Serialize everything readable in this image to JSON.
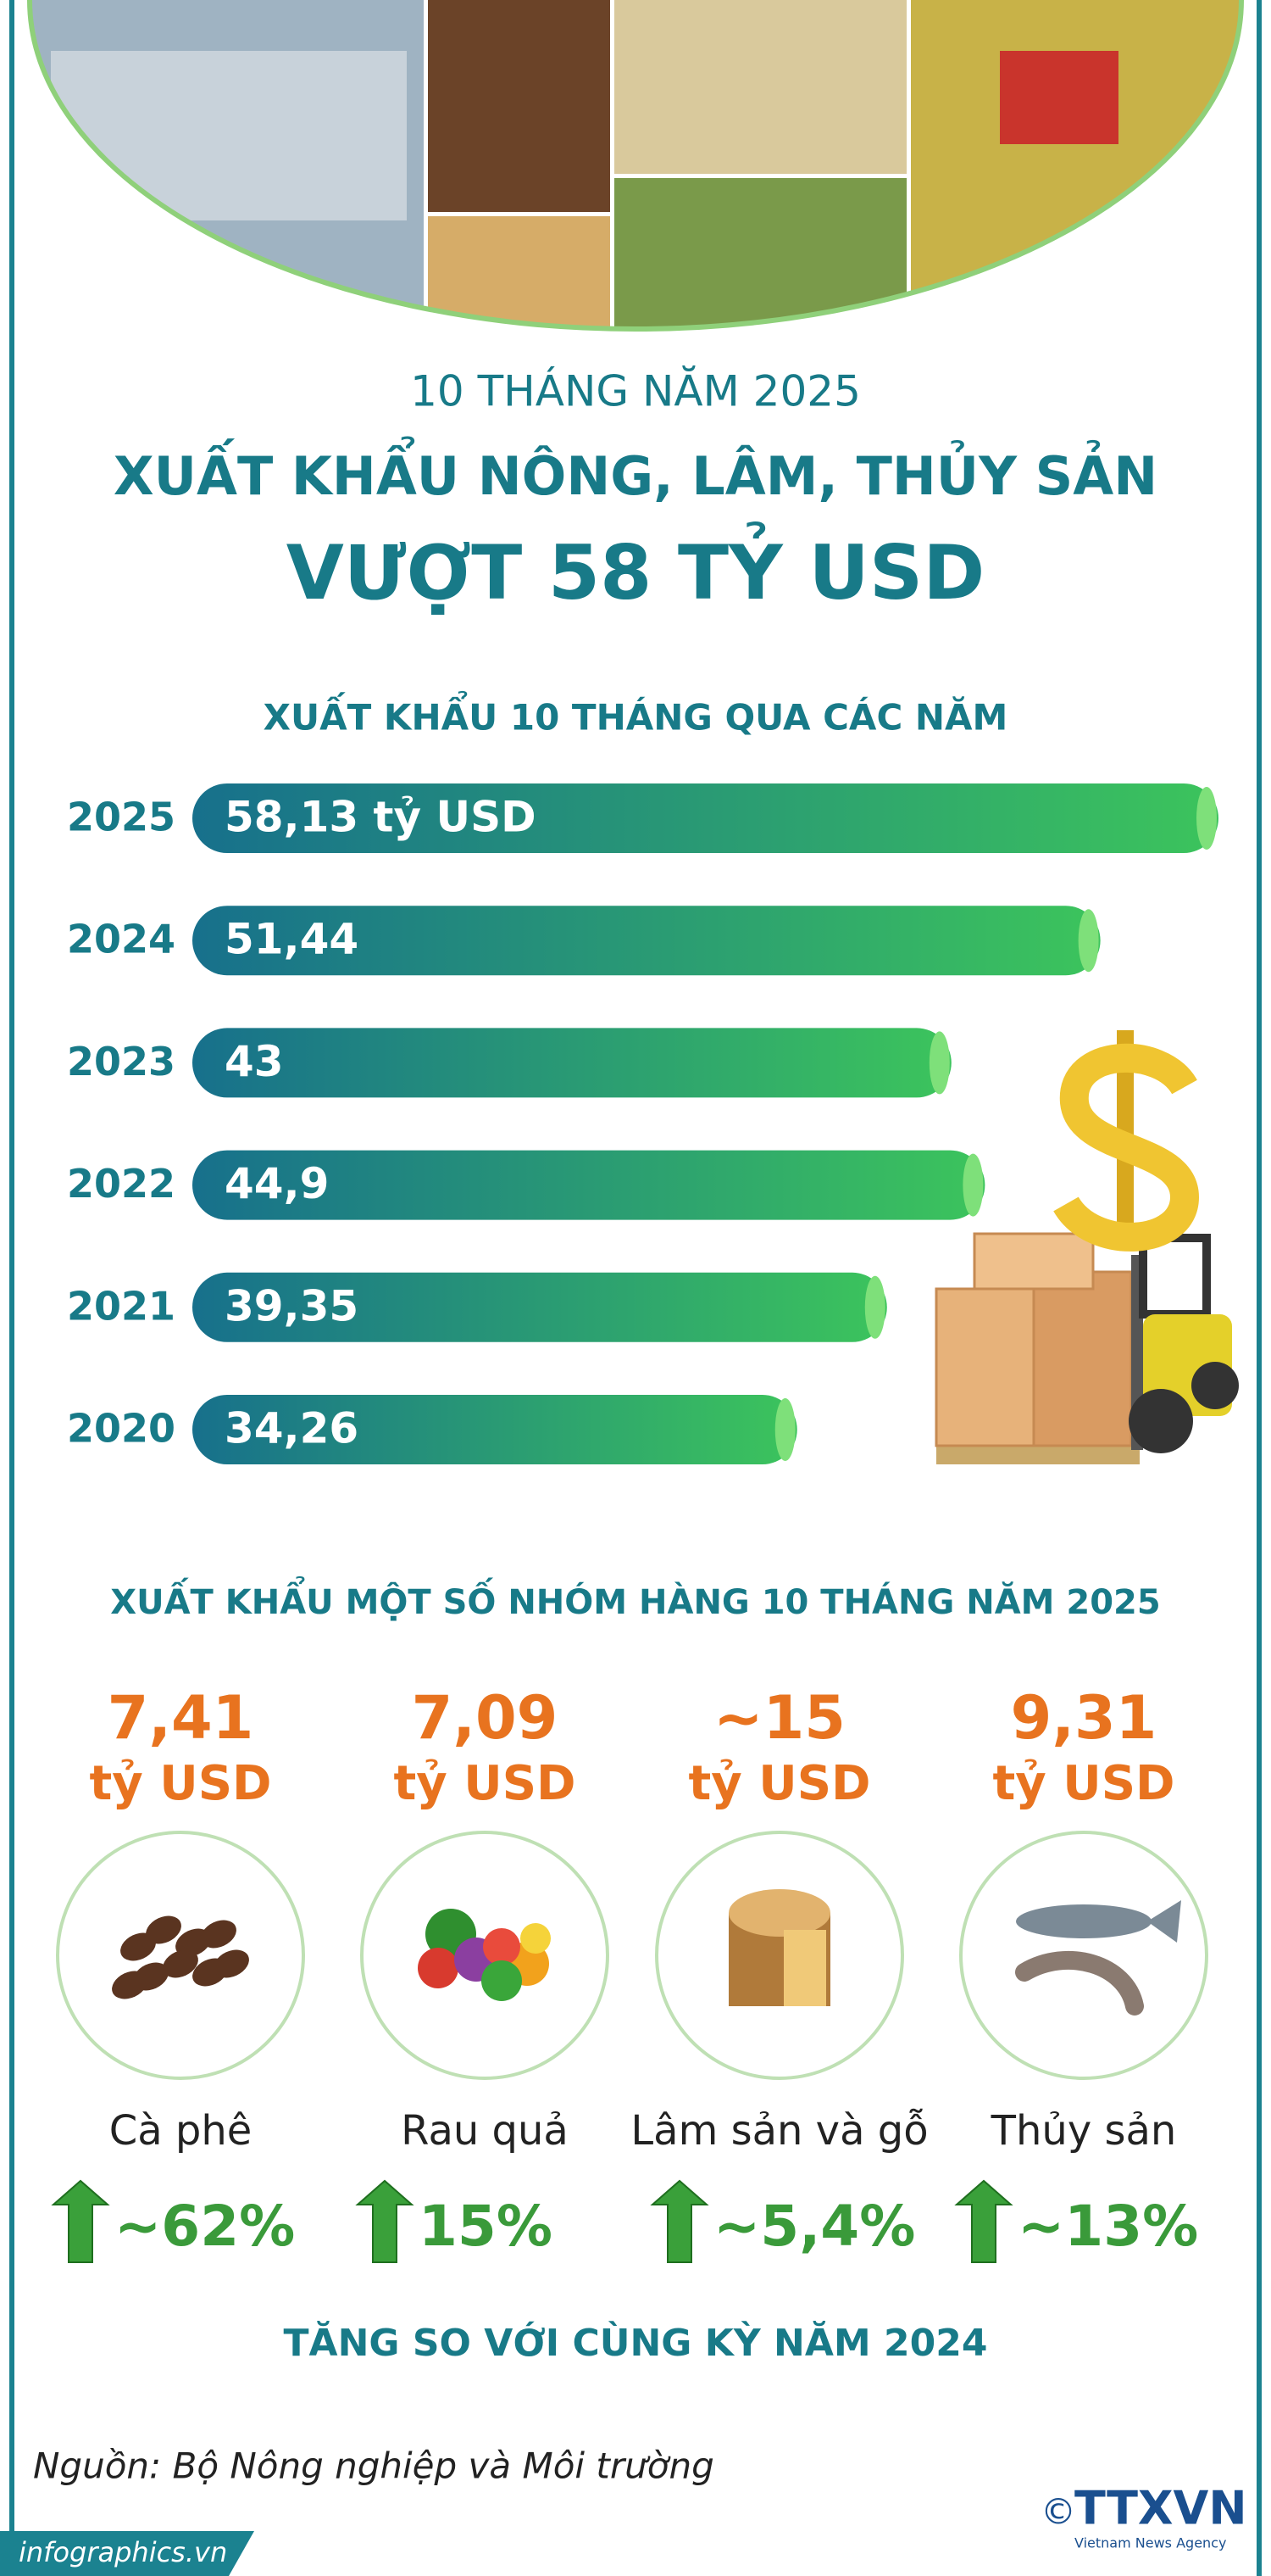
{
  "header": {
    "subtitle": "10 THÁNG NĂM 2025",
    "title": "XUẤT KHẨU NÔNG, LÂM, THỦY SẢN",
    "headline": "VƯỢT 58 TỶ USD"
  },
  "chart_data": {
    "type": "bar",
    "title": "XUẤT KHẨU 10 THÁNG QUA CÁC NĂM",
    "categories": [
      "2025",
      "2024",
      "2023",
      "2022",
      "2021",
      "2020"
    ],
    "values": [
      58.13,
      51.44,
      43,
      44.9,
      39.35,
      34.26
    ],
    "value_labels": [
      "58,13 tỷ USD",
      "51,44",
      "43",
      "44,9",
      "39,35",
      "34,26"
    ],
    "colors": [
      "#17708c",
      "#3cc45c"
    ]
  },
  "groups": {
    "title": "XUẤT KHẨU MỘT SỐ NHÓM HÀNG 10 THÁNG NĂM 2025",
    "items": [
      {
        "value": "7,41",
        "unit": "tỷ USD",
        "name": "Cà phê",
        "growth": "~62%"
      },
      {
        "value": "7,09",
        "unit": "tỷ USD",
        "name": "Rau quả",
        "growth": "15%"
      },
      {
        "value": "~15",
        "unit": "tỷ USD",
        "name": "Lâm sản và gỗ",
        "growth": "~5,4%"
      },
      {
        "value": "9,31",
        "unit": "tỷ USD",
        "name": "Thủy sản",
        "growth": "~13%"
      }
    ],
    "note": "TĂNG SO VỚI CÙNG KỲ NĂM 2024"
  },
  "footer": {
    "source": "Nguồn: Bộ Nông nghiệp và Môi trường",
    "website": "infographics.vn",
    "copyright": "©",
    "logo": "TTXVN",
    "agency": "Vietnam News Agency"
  }
}
